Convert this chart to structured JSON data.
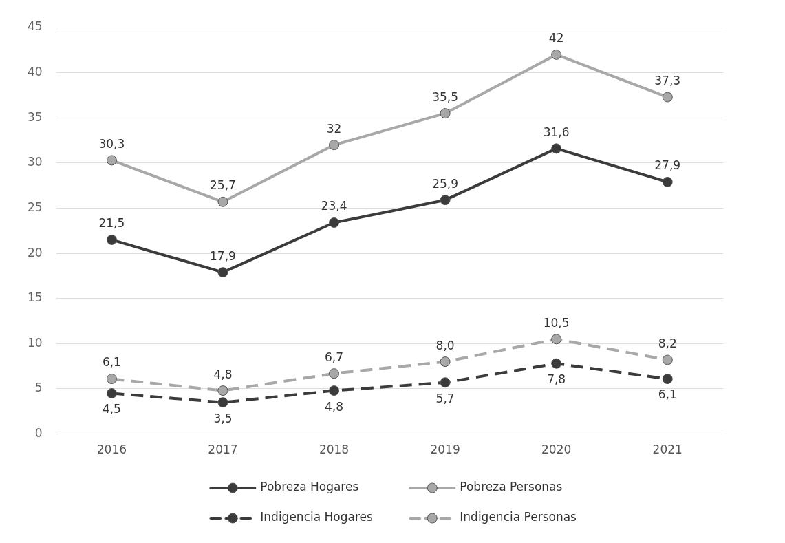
{
  "chart_data": {
    "type": "line",
    "categories": [
      "2016",
      "2017",
      "2018",
      "2019",
      "2020",
      "2021"
    ],
    "series": [
      {
        "name": "Pobreza Hogares",
        "color": "#3b3b3b",
        "values": [
          21.5,
          17.9,
          23.4,
          25.9,
          31.6,
          27.9
        ],
        "value_labels": [
          "21,5",
          "17,9",
          "23,4",
          "25,9",
          "31,6",
          "27,9"
        ],
        "line_style": "solid"
      },
      {
        "name": "Pobreza Personas",
        "color": "#a8a8a8",
        "values": [
          30.3,
          25.7,
          32,
          35.5,
          42,
          37.3
        ],
        "value_labels": [
          "30,3",
          "25,7",
          "32",
          "35,5",
          "42",
          "37,3"
        ],
        "line_style": "solid"
      },
      {
        "name": "Indigencia Hogares",
        "color": "#3b3b3b",
        "values": [
          4.5,
          3.5,
          4.8,
          5.7,
          7.8,
          6.1
        ],
        "value_labels": [
          "4,5",
          "3,5",
          "4,8",
          "5,7",
          "7,8",
          "6,1"
        ],
        "line_style": "dashed"
      },
      {
        "name": "Indigencia Personas",
        "color": "#a8a8a8",
        "values": [
          6.1,
          4.8,
          6.7,
          8.0,
          10.5,
          8.2
        ],
        "value_labels": [
          "6,1",
          "4,8",
          "6,7",
          "8,0",
          "10,5",
          "8,2"
        ],
        "line_style": "dashed"
      }
    ],
    "ylim": [
      0,
      45
    ],
    "yticks": [
      0,
      5,
      10,
      15,
      20,
      25,
      30,
      35,
      40,
      45
    ],
    "grid": "y",
    "legend": "bottom",
    "marker": "circle"
  }
}
